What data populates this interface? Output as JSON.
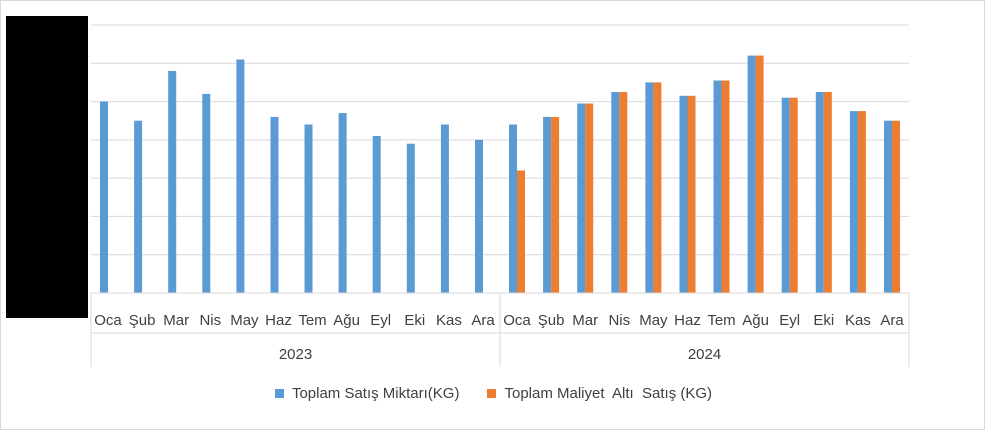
{
  "chart_data": {
    "type": "bar",
    "groups": [
      {
        "label": "2023",
        "categories": [
          "Oca",
          "Şub",
          "Mar",
          "Nis",
          "May",
          "Haz",
          "Tem",
          "Ağu",
          "Eyl",
          "Eki",
          "Kas",
          "Ara"
        ]
      },
      {
        "label": "2024",
        "categories": [
          "Oca",
          "Şub",
          "Mar",
          "Nis",
          "May",
          "Haz",
          "Tem",
          "Ağu",
          "Eyl",
          "Eki",
          "Kas",
          "Ara"
        ]
      }
    ],
    "series": [
      {
        "name": "Toplam Satış Miktarı(KG)",
        "color": "#5b9bd5",
        "values": [
          5.0,
          4.5,
          5.8,
          5.2,
          6.1,
          4.6,
          4.4,
          4.7,
          4.1,
          3.9,
          4.4,
          4.0,
          4.4,
          4.6,
          4.95,
          5.25,
          5.5,
          5.15,
          5.55,
          6.2,
          5.1,
          5.25,
          4.75,
          4.5
        ]
      },
      {
        "name": "Toplam Maliyet  Altı  Satış (KG)",
        "color": "#ed7d31",
        "values": [
          null,
          null,
          null,
          null,
          null,
          null,
          null,
          null,
          null,
          null,
          null,
          null,
          3.2,
          4.6,
          4.95,
          5.25,
          5.5,
          5.15,
          5.55,
          6.2,
          5.1,
          5.25,
          4.75,
          4.5
        ]
      }
    ],
    "ylim": [
      0,
      7
    ],
    "yticks": [
      0,
      1,
      2,
      3,
      4,
      5,
      6,
      7
    ],
    "grid": true,
    "legend_position": "bottom"
  }
}
